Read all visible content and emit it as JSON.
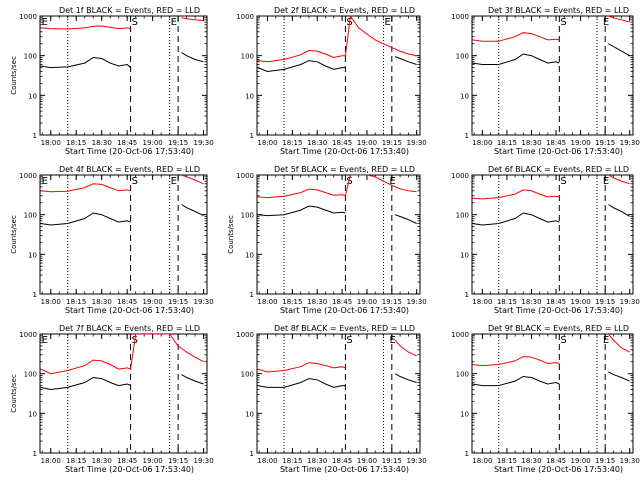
{
  "figure": {
    "y_axis_label": "Counts/sec",
    "x_axis_label": "Start Time (20-Oct-06 17:53:40)",
    "y_ticks": [
      "1",
      "10",
      "100",
      "1000"
    ],
    "x_ticks": [
      "18:00",
      "18:15",
      "18:30",
      "18:45",
      "19:00",
      "19:15",
      "19:30"
    ],
    "colors": {
      "events": "#000000",
      "lld": "#ff0000",
      "background": "#ffffff"
    }
  },
  "chart_data": [
    {
      "type": "line",
      "title": "Det 1f BLACK = Events, RED = LLD",
      "xlabel": "Start Time (20-Oct-06 17:53:40)",
      "ylabel": "Counts/sec",
      "ylim": [
        1,
        1000
      ],
      "yscale": "log",
      "xlim": [
        "17:53:40",
        "19:32"
      ],
      "grid": false,
      "legend": "none",
      "markers": {
        "dotted": [
          "18:10",
          "19:10"
        ],
        "dashed": [
          "18:47",
          "19:15"
        ],
        "labels": [
          {
            "text": "E",
            "x": "17:54"
          },
          {
            "text": "S",
            "x": "18:47"
          },
          {
            "text": "E",
            "x": "19:10"
          }
        ]
      },
      "series": [
        {
          "name": "Events",
          "x": [
            "17:54",
            "18:00",
            "18:10",
            "18:20",
            "18:25",
            "18:30",
            "18:35",
            "18:40",
            "18:45",
            "18:47",
            "19:15",
            "19:17",
            "19:20",
            "19:25",
            "19:30"
          ],
          "values": [
            55,
            50,
            52,
            65,
            90,
            85,
            65,
            55,
            60,
            50,
            null,
            120,
            100,
            80,
            70
          ]
        },
        {
          "name": "LLD",
          "x": [
            "17:54",
            "18:00",
            "18:10",
            "18:20",
            "18:25",
            "18:30",
            "18:35",
            "18:40",
            "18:45",
            "18:47",
            "19:15",
            "19:17",
            "19:20",
            "19:25",
            "19:30"
          ],
          "values": [
            500,
            480,
            470,
            500,
            550,
            560,
            520,
            480,
            500,
            480,
            null,
            900,
            850,
            800,
            760
          ]
        }
      ]
    },
    {
      "type": "line",
      "title": "Det 2f BLACK = Events, RED = LLD",
      "xlabel": "Start Time (20-Oct-06 17:53:40)",
      "ylabel": "Counts/sec",
      "ylim": [
        1,
        1000
      ],
      "yscale": "log",
      "xlim": [
        "17:53:40",
        "19:32"
      ],
      "grid": false,
      "legend": "none",
      "markers": {
        "dotted": [
          "18:10",
          "19:10"
        ],
        "dashed": [
          "18:47",
          "19:15"
        ],
        "labels": [
          {
            "text": "S",
            "x": "18:47"
          },
          {
            "text": "E",
            "x": "19:10"
          }
        ]
      },
      "series": [
        {
          "name": "Events",
          "x": [
            "17:54",
            "18:00",
            "18:10",
            "18:20",
            "18:25",
            "18:30",
            "18:35",
            "18:40",
            "18:45",
            "18:47",
            "19:15",
            "19:17",
            "19:20",
            "19:25",
            "19:30"
          ],
          "values": [
            50,
            40,
            45,
            60,
            75,
            70,
            55,
            45,
            50,
            50,
            null,
            95,
            85,
            70,
            60
          ]
        },
        {
          "name": "LLD",
          "x": [
            "17:54",
            "18:00",
            "18:10",
            "18:20",
            "18:25",
            "18:30",
            "18:35",
            "18:40",
            "18:45",
            "18:47",
            "18:50",
            "18:55",
            "19:00",
            "19:05",
            "19:10",
            "19:15",
            "19:20",
            "19:25",
            "19:30"
          ],
          "values": [
            75,
            70,
            80,
            105,
            135,
            130,
            110,
            90,
            100,
            100,
            1000,
            500,
            350,
            250,
            200,
            160,
            130,
            110,
            100
          ]
        }
      ]
    },
    {
      "type": "line",
      "title": "Det 3f BLACK = Events, RED = LLD",
      "xlabel": "Start Time (20-Oct-06 17:53:40)",
      "ylabel": "Counts/sec",
      "ylim": [
        1,
        1000
      ],
      "yscale": "log",
      "xlim": [
        "17:53:40",
        "19:32"
      ],
      "grid": false,
      "legend": "none",
      "markers": {
        "dotted": [
          "18:10",
          "19:10"
        ],
        "dashed": [
          "18:47",
          "19:15"
        ],
        "labels": [
          {
            "text": "S",
            "x": "18:47"
          },
          {
            "text": "E",
            "x": "19:13"
          }
        ]
      },
      "series": [
        {
          "name": "Events",
          "x": [
            "17:54",
            "18:00",
            "18:10",
            "18:20",
            "18:25",
            "18:30",
            "18:35",
            "18:40",
            "18:45",
            "18:47",
            "19:15",
            "19:17",
            "19:20",
            "19:25",
            "19:30"
          ],
          "values": [
            65,
            60,
            60,
            80,
            110,
            100,
            80,
            65,
            70,
            65,
            null,
            200,
            170,
            130,
            100
          ]
        },
        {
          "name": "LLD",
          "x": [
            "17:54",
            "18:00",
            "18:10",
            "18:20",
            "18:25",
            "18:30",
            "18:35",
            "18:40",
            "18:45",
            "18:47",
            "19:15",
            "19:17",
            "19:20",
            "19:25",
            "19:30"
          ],
          "values": [
            250,
            230,
            230,
            300,
            380,
            360,
            300,
            250,
            260,
            250,
            null,
            1000,
            900,
            800,
            700
          ]
        }
      ]
    },
    {
      "type": "line",
      "title": "Det 4f BLACK = Events, RED = LLD",
      "xlabel": "Start Time (20-Oct-06 17:53:40)",
      "ylabel": "Counts/sec",
      "ylim": [
        1,
        1000
      ],
      "yscale": "log",
      "xlim": [
        "17:53:40",
        "19:32"
      ],
      "grid": false,
      "legend": "none",
      "markers": {
        "dotted": [
          "18:10",
          "19:10"
        ],
        "dashed": [
          "18:47",
          "19:15"
        ],
        "labels": [
          {
            "text": "E",
            "x": "17:54"
          },
          {
            "text": "S",
            "x": "18:47"
          },
          {
            "text": "E",
            "x": "19:10"
          }
        ]
      },
      "series": [
        {
          "name": "Events",
          "x": [
            "17:54",
            "18:00",
            "18:10",
            "18:20",
            "18:25",
            "18:30",
            "18:35",
            "18:40",
            "18:45",
            "18:47",
            "19:15",
            "19:17",
            "19:20",
            "19:25",
            "19:30"
          ],
          "values": [
            60,
            55,
            60,
            80,
            110,
            100,
            80,
            65,
            70,
            65,
            null,
            180,
            150,
            120,
            95
          ]
        },
        {
          "name": "LLD",
          "x": [
            "17:54",
            "18:00",
            "18:10",
            "18:20",
            "18:25",
            "18:30",
            "18:35",
            "18:40",
            "18:45",
            "18:47",
            "19:15",
            "19:17",
            "19:20",
            "19:25",
            "19:30"
          ],
          "values": [
            400,
            380,
            390,
            480,
            600,
            580,
            480,
            400,
            420,
            400,
            null,
            1000,
            900,
            750,
            600
          ]
        }
      ]
    },
    {
      "type": "line",
      "title": "Det 5f BLACK = Events, RED = LLD",
      "xlabel": "Start Time (20-Oct-06 17:53:40)",
      "ylabel": "Counts/sec",
      "ylim": [
        1,
        1000
      ],
      "yscale": "log",
      "xlim": [
        "17:53:40",
        "19:32"
      ],
      "grid": false,
      "legend": "none",
      "markers": {
        "dotted": [
          "18:10",
          "19:10"
        ],
        "dashed": [
          "18:47",
          "19:15"
        ],
        "labels": [
          {
            "text": "S",
            "x": "18:47"
          },
          {
            "text": "E",
            "x": "19:13"
          }
        ]
      },
      "series": [
        {
          "name": "Events",
          "x": [
            "17:54",
            "18:00",
            "18:10",
            "18:20",
            "18:25",
            "18:30",
            "18:35",
            "18:40",
            "18:45",
            "18:47",
            "19:15",
            "19:17",
            "19:20",
            "19:25",
            "19:30"
          ],
          "values": [
            100,
            95,
            100,
            130,
            165,
            155,
            130,
            110,
            115,
            110,
            null,
            100,
            90,
            75,
            60
          ]
        },
        {
          "name": "LLD",
          "x": [
            "17:54",
            "18:00",
            "18:10",
            "18:20",
            "18:25",
            "18:30",
            "18:35",
            "18:40",
            "18:45",
            "18:47",
            "18:50",
            "18:55",
            "19:00",
            "19:05",
            "19:10",
            "19:15",
            "19:20",
            "19:25",
            "19:30"
          ],
          "values": [
            280,
            270,
            290,
            360,
            440,
            420,
            360,
            310,
            320,
            300,
            1000,
            1000,
            1000,
            900,
            700,
            550,
            450,
            400,
            380
          ]
        }
      ]
    },
    {
      "type": "line",
      "title": "Det 6f BLACK = Events, RED = LLD",
      "xlabel": "Start Time (20-Oct-06 17:53:40)",
      "ylabel": "Counts/sec",
      "ylim": [
        1,
        1000
      ],
      "yscale": "log",
      "xlim": [
        "17:53:40",
        "19:32"
      ],
      "grid": false,
      "legend": "none",
      "markers": {
        "dotted": [
          "18:10",
          "19:10"
        ],
        "dashed": [
          "18:47",
          "19:15"
        ],
        "labels": [
          {
            "text": "S",
            "x": "18:47"
          },
          {
            "text": "E",
            "x": "19:13"
          }
        ]
      },
      "series": [
        {
          "name": "Events",
          "x": [
            "17:54",
            "18:00",
            "18:10",
            "18:20",
            "18:25",
            "18:30",
            "18:35",
            "18:40",
            "18:45",
            "18:47",
            "19:15",
            "19:17",
            "19:20",
            "19:25",
            "19:30"
          ],
          "values": [
            60,
            55,
            60,
            80,
            110,
            100,
            80,
            65,
            70,
            65,
            null,
            180,
            150,
            120,
            90
          ]
        },
        {
          "name": "LLD",
          "x": [
            "17:54",
            "18:00",
            "18:10",
            "18:20",
            "18:25",
            "18:30",
            "18:35",
            "18:40",
            "18:45",
            "18:47",
            "19:15",
            "19:17",
            "19:20",
            "19:25",
            "19:30"
          ],
          "values": [
            260,
            250,
            270,
            330,
            420,
            400,
            330,
            280,
            290,
            280,
            null,
            1000,
            850,
            700,
            600
          ]
        }
      ]
    },
    {
      "type": "line",
      "title": "Det 7f BLACK = Events, RED = LLD",
      "xlabel": "Start Time (20-Oct-06 17:53:40)",
      "ylabel": "Counts/sec",
      "ylim": [
        1,
        1000
      ],
      "yscale": "log",
      "xlim": [
        "17:53:40",
        "19:32"
      ],
      "grid": false,
      "legend": "none",
      "markers": {
        "dotted": [
          "18:10",
          "19:10"
        ],
        "dashed": [
          "18:47",
          "19:15"
        ],
        "labels": [
          {
            "text": "E",
            "x": "17:54"
          },
          {
            "text": "S",
            "x": "18:47"
          }
        ]
      },
      "series": [
        {
          "name": "Events",
          "x": [
            "17:54",
            "18:00",
            "18:10",
            "18:20",
            "18:25",
            "18:30",
            "18:35",
            "18:40",
            "18:45",
            "18:47",
            "19:15",
            "19:17",
            "19:20",
            "19:25",
            "19:30"
          ],
          "values": [
            45,
            40,
            45,
            60,
            80,
            75,
            60,
            50,
            55,
            50,
            null,
            95,
            80,
            65,
            55
          ]
        },
        {
          "name": "LLD",
          "x": [
            "17:54",
            "18:00",
            "18:10",
            "18:20",
            "18:25",
            "18:30",
            "18:35",
            "18:40",
            "18:45",
            "18:47",
            "18:50",
            "19:00",
            "19:10",
            "19:15",
            "19:20",
            "19:25",
            "19:30"
          ],
          "values": [
            130,
            100,
            120,
            160,
            220,
            210,
            170,
            130,
            140,
            130,
            1000,
            1000,
            1000,
            500,
            350,
            260,
            200
          ]
        }
      ]
    },
    {
      "type": "line",
      "title": "Det 8f BLACK = Events, RED = LLD",
      "xlabel": "Start Time (20-Oct-06 17:53:40)",
      "ylabel": "Counts/sec",
      "ylim": [
        1,
        1000
      ],
      "yscale": "log",
      "xlim": [
        "17:53:40",
        "19:32"
      ],
      "grid": false,
      "legend": "none",
      "markers": {
        "dotted": [
          "18:10",
          "19:10"
        ],
        "dashed": [
          "18:47",
          "19:15"
        ],
        "labels": [
          {
            "text": "S",
            "x": "18:47"
          },
          {
            "text": "E",
            "x": "19:13"
          }
        ]
      },
      "series": [
        {
          "name": "Events",
          "x": [
            "17:54",
            "18:00",
            "18:10",
            "18:20",
            "18:25",
            "18:30",
            "18:35",
            "18:40",
            "18:45",
            "18:47",
            "19:15",
            "19:17",
            "19:20",
            "19:25",
            "19:30"
          ],
          "values": [
            50,
            45,
            45,
            60,
            75,
            70,
            55,
            45,
            50,
            50,
            null,
            100,
            85,
            70,
            60
          ]
        },
        {
          "name": "LLD",
          "x": [
            "17:54",
            "18:00",
            "18:10",
            "18:20",
            "18:25",
            "18:30",
            "18:35",
            "18:40",
            "18:45",
            "18:47",
            "19:15",
            "19:17",
            "19:20",
            "19:25",
            "19:30"
          ],
          "values": [
            130,
            110,
            120,
            150,
            190,
            180,
            160,
            140,
            150,
            140,
            null,
            700,
            500,
            350,
            280
          ]
        }
      ]
    },
    {
      "type": "line",
      "title": "Det 9f BLACK = Events, RED = LLD",
      "xlabel": "Start Time (20-Oct-06 17:53:40)",
      "ylabel": "Counts/sec",
      "ylim": [
        1,
        1000
      ],
      "yscale": "log",
      "xlim": [
        "17:53:40",
        "19:32"
      ],
      "grid": false,
      "legend": "none",
      "markers": {
        "dotted": [
          "18:10",
          "19:10"
        ],
        "dashed": [
          "18:47",
          "19:15"
        ],
        "labels": [
          {
            "text": "S",
            "x": "18:47"
          },
          {
            "text": "E",
            "x": "19:13"
          }
        ]
      },
      "series": [
        {
          "name": "Events",
          "x": [
            "17:54",
            "18:00",
            "18:10",
            "18:20",
            "18:25",
            "18:30",
            "18:35",
            "18:40",
            "18:45",
            "18:47",
            "19:15",
            "19:17",
            "19:20",
            "19:25",
            "19:30"
          ],
          "values": [
            55,
            50,
            50,
            65,
            85,
            80,
            65,
            55,
            60,
            55,
            null,
            110,
            95,
            80,
            65
          ]
        },
        {
          "name": "LLD",
          "x": [
            "17:54",
            "18:00",
            "18:10",
            "18:20",
            "18:25",
            "18:30",
            "18:35",
            "18:40",
            "18:45",
            "18:47",
            "19:15",
            "19:17",
            "19:20",
            "19:25",
            "19:30"
          ],
          "values": [
            170,
            160,
            170,
            210,
            270,
            260,
            220,
            180,
            190,
            180,
            null,
            1000,
            700,
            450,
            350
          ]
        }
      ]
    }
  ]
}
